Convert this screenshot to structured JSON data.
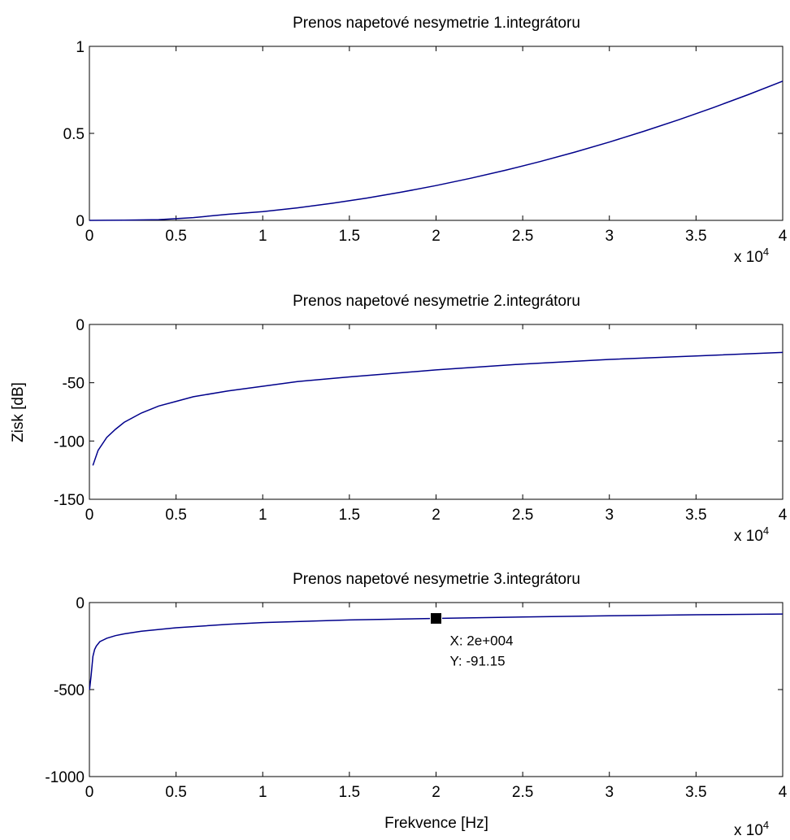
{
  "figure": {
    "background": "#ffffff",
    "line_color": "#00008b",
    "axes_color": "#000000",
    "ylabel": "Zisk [dB]",
    "xlabel": "Frekvence [Hz]"
  },
  "chart_data": [
    {
      "type": "line",
      "title": "Prenos napetové nesymetrie 1.integrátoru",
      "xlabel": "",
      "ylabel": "",
      "xlim": [
        0,
        40000
      ],
      "ylim": [
        0,
        1
      ],
      "x_ticks": [
        0,
        5000,
        10000,
        15000,
        20000,
        25000,
        30000,
        35000,
        40000
      ],
      "x_tick_labels": [
        "0",
        "0.5",
        "1",
        "1.5",
        "2",
        "2.5",
        "3",
        "3.5",
        "4"
      ],
      "x_multiplier_label": {
        "prefix": "x 10",
        "exponent": "4"
      },
      "y_ticks": [
        0,
        0.5,
        1
      ],
      "y_tick_labels": [
        "0",
        "0.5",
        "1"
      ],
      "grid": false,
      "series": [
        {
          "color": "#00008b",
          "x": [
            0,
            2000,
            4000,
            6000,
            8000,
            10000,
            12000,
            14000,
            16000,
            18000,
            20000,
            22000,
            24000,
            26000,
            28000,
            30000,
            32000,
            34000,
            36000,
            38000,
            40000
          ],
          "y": [
            0,
            0.001,
            0.004,
            0.016,
            0.035,
            0.05,
            0.072,
            0.098,
            0.128,
            0.162,
            0.2,
            0.242,
            0.288,
            0.338,
            0.392,
            0.45,
            0.512,
            0.578,
            0.648,
            0.722,
            0.8
          ]
        }
      ]
    },
    {
      "type": "line",
      "title": "Prenos napetové nesymetrie 2.integrátoru",
      "xlabel": "",
      "ylabel": "Zisk [dB]",
      "xlim": [
        0,
        40000
      ],
      "ylim": [
        -150,
        0
      ],
      "x_ticks": [
        0,
        5000,
        10000,
        15000,
        20000,
        25000,
        30000,
        35000,
        40000
      ],
      "x_tick_labels": [
        "0",
        "0.5",
        "1",
        "1.5",
        "2",
        "2.5",
        "3",
        "3.5",
        "4"
      ],
      "x_multiplier_label": {
        "prefix": "x 10",
        "exponent": "4"
      },
      "y_ticks": [
        -150,
        -100,
        -50,
        0
      ],
      "y_tick_labels": [
        "-150",
        "-100",
        "-50",
        "0"
      ],
      "grid": false,
      "series": [
        {
          "color": "#00008b",
          "x": [
            200,
            500,
            1000,
            1500,
            2000,
            3000,
            4000,
            5000,
            6000,
            8000,
            10000,
            12000,
            15000,
            20000,
            25000,
            30000,
            35000,
            40000
          ],
          "y": [
            -121,
            -108,
            -97,
            -90,
            -84,
            -76,
            -70,
            -66,
            -62,
            -57,
            -53,
            -49,
            -45,
            -39,
            -34,
            -30,
            -27,
            -24
          ]
        }
      ]
    },
    {
      "type": "line",
      "title": "Prenos napetové nesymetrie 3.integrátoru",
      "xlabel": "Frekvence [Hz]",
      "ylabel": "",
      "xlim": [
        0,
        40000
      ],
      "ylim": [
        -1000,
        0
      ],
      "x_ticks": [
        0,
        5000,
        10000,
        15000,
        20000,
        25000,
        30000,
        35000,
        40000
      ],
      "x_tick_labels": [
        "0",
        "0.5",
        "1",
        "1.5",
        "2",
        "2.5",
        "3",
        "3.5",
        "4"
      ],
      "x_multiplier_label": {
        "prefix": "x 10",
        "exponent": "4"
      },
      "y_ticks": [
        -1000,
        -500,
        0
      ],
      "y_tick_labels": [
        "-1000",
        "-500",
        "0"
      ],
      "grid": false,
      "series": [
        {
          "color": "#00008b",
          "x": [
            10,
            100,
            200,
            300,
            400,
            600,
            1000,
            1500,
            2000,
            3000,
            5000,
            8000,
            10000,
            15000,
            20000,
            25000,
            30000,
            35000,
            40000
          ],
          "y": [
            -500,
            -420,
            -310,
            -270,
            -250,
            -225,
            -205,
            -190,
            -180,
            -165,
            -145,
            -125,
            -115,
            -100,
            -91.15,
            -83,
            -76,
            -70,
            -66
          ]
        }
      ],
      "datatip": {
        "x": 20000,
        "y": -91.15,
        "x_text": "X: 2e+004",
        "y_text": "Y: -91.15"
      }
    }
  ]
}
